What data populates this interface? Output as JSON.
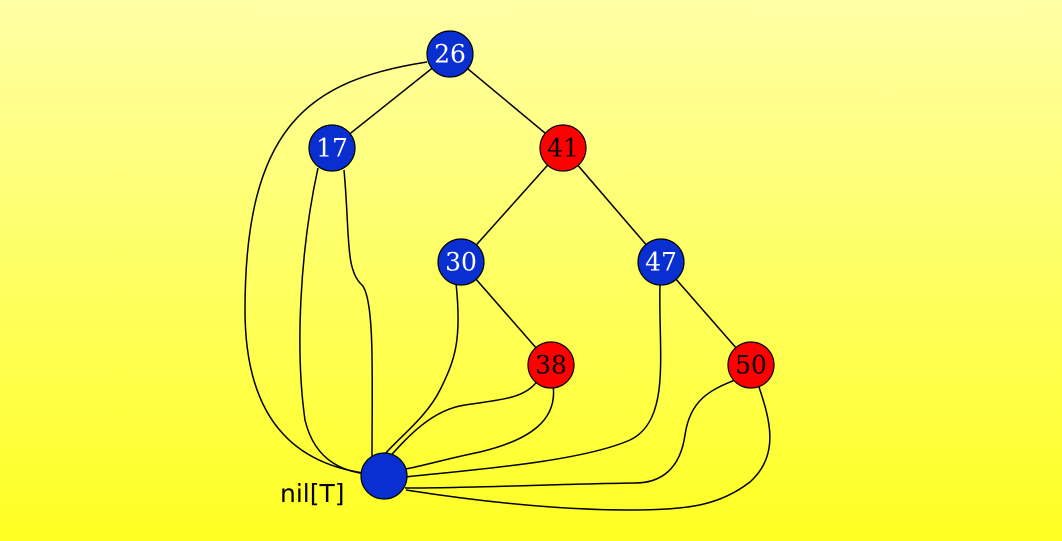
{
  "tree": {
    "nodes": [
      {
        "key": "26",
        "color": "black"
      },
      {
        "key": "17",
        "color": "black"
      },
      {
        "key": "41",
        "color": "red"
      },
      {
        "key": "30",
        "color": "black"
      },
      {
        "key": "47",
        "color": "black"
      },
      {
        "key": "38",
        "color": "red"
      },
      {
        "key": "50",
        "color": "red"
      }
    ],
    "edges": [
      [
        "26",
        "17"
      ],
      [
        "26",
        "41"
      ],
      [
        "41",
        "30"
      ],
      [
        "41",
        "47"
      ],
      [
        "30",
        "38"
      ],
      [
        "47",
        "50"
      ]
    ],
    "sentinel": {
      "label": "nil[T]",
      "color": "black"
    }
  },
  "colors": {
    "black_node": "#0a2fd0",
    "red_node": "#ff0000",
    "black_label": "#ffffff",
    "red_label": "#000000",
    "background_top": "#ffffa6",
    "background_bottom": "#ffff22"
  }
}
